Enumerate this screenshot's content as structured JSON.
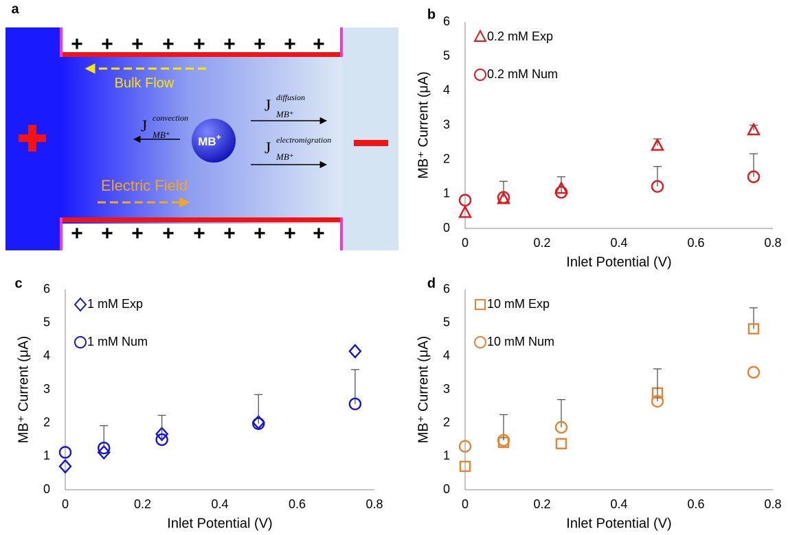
{
  "diagram": {
    "panel_label": "a",
    "charge_sign": "+",
    "bulk_flow": "Bulk Flow",
    "electric_field": "Electric Field",
    "ion": {
      "text": "MB",
      "superscript": "+"
    },
    "fluxes": [
      {
        "symbol": "J",
        "superscript": "convection",
        "subscript": "MB⁺"
      },
      {
        "symbol": "J",
        "superscript": "diffusion",
        "subscript": "MB⁺"
      },
      {
        "symbol": "J",
        "superscript": "electromigration",
        "subscript": "MB⁺"
      }
    ]
  },
  "chart_data": [
    {
      "type": "scatter",
      "panel_label": "b",
      "xlabel": "Inlet Potential (V)",
      "ylabel": "MB⁺ Current (μA)",
      "xlim": [
        0,
        0.8
      ],
      "xticks": [
        0,
        0.2,
        0.4,
        0.6,
        0.8
      ],
      "ylim": [
        0,
        6
      ],
      "yticks": [
        0,
        1,
        2,
        3,
        4,
        5,
        6
      ],
      "x": [
        0,
        0.1,
        0.25,
        0.5,
        0.75
      ],
      "series": [
        {
          "name": "0.2 mM Exp",
          "color": "#e8141c",
          "marker": "triangle",
          "values": [
            0.45,
            0.85,
            1.15,
            2.4,
            2.85
          ],
          "errors": [
            null,
            null,
            null,
            0.2,
            0.15
          ]
        },
        {
          "name": "0.2 mM Num",
          "color": "#e8141c",
          "marker": "circle",
          "values": [
            0.82,
            0.9,
            1.05,
            1.22,
            1.5
          ],
          "errors": [
            null,
            0.47,
            0.45,
            0.58,
            0.67
          ]
        }
      ]
    },
    {
      "type": "scatter",
      "panel_label": "c",
      "xlabel": "Inlet Potential (V)",
      "ylabel": "MB⁺ Current (μA)",
      "xlim": [
        0,
        0.8
      ],
      "xticks": [
        0,
        0.2,
        0.4,
        0.6,
        0.8
      ],
      "ylim": [
        0,
        6
      ],
      "yticks": [
        0,
        1,
        2,
        3,
        4,
        5,
        6
      ],
      "x": [
        0,
        0.1,
        0.25,
        0.5,
        0.75
      ],
      "series": [
        {
          "name": "1 mM Exp",
          "color": "#1414d8",
          "marker": "diamond",
          "values": [
            0.7,
            1.12,
            1.67,
            2.02,
            4.15
          ],
          "errors": [
            null,
            null,
            null,
            null,
            null
          ]
        },
        {
          "name": "1 mM Num",
          "color": "#1414d8",
          "marker": "circle",
          "values": [
            1.12,
            1.25,
            1.5,
            1.98,
            2.57
          ],
          "errors": [
            null,
            0.67,
            0.73,
            0.87,
            1.03
          ]
        }
      ]
    },
    {
      "type": "scatter",
      "panel_label": "d",
      "xlabel": "Inlet Potential (V)",
      "ylabel": "MB⁺ Current (μA)",
      "xlim": [
        0,
        0.8
      ],
      "xticks": [
        0,
        0.2,
        0.4,
        0.6,
        0.8
      ],
      "ylim": [
        0,
        6
      ],
      "yticks": [
        0,
        1,
        2,
        3,
        4,
        5,
        6
      ],
      "x": [
        0,
        0.1,
        0.25,
        0.5,
        0.75
      ],
      "series": [
        {
          "name": "10 mM Exp",
          "color": "#e8822e",
          "marker": "square",
          "values": [
            0.7,
            1.42,
            1.38,
            2.9,
            4.82
          ],
          "errors": [
            null,
            null,
            null,
            null,
            0.63
          ]
        },
        {
          "name": "10 mM Num",
          "color": "#e8822e",
          "marker": "circle",
          "values": [
            1.3,
            1.48,
            1.87,
            2.65,
            3.52
          ],
          "errors": [
            null,
            0.77,
            0.83,
            0.97,
            null
          ]
        }
      ]
    }
  ]
}
